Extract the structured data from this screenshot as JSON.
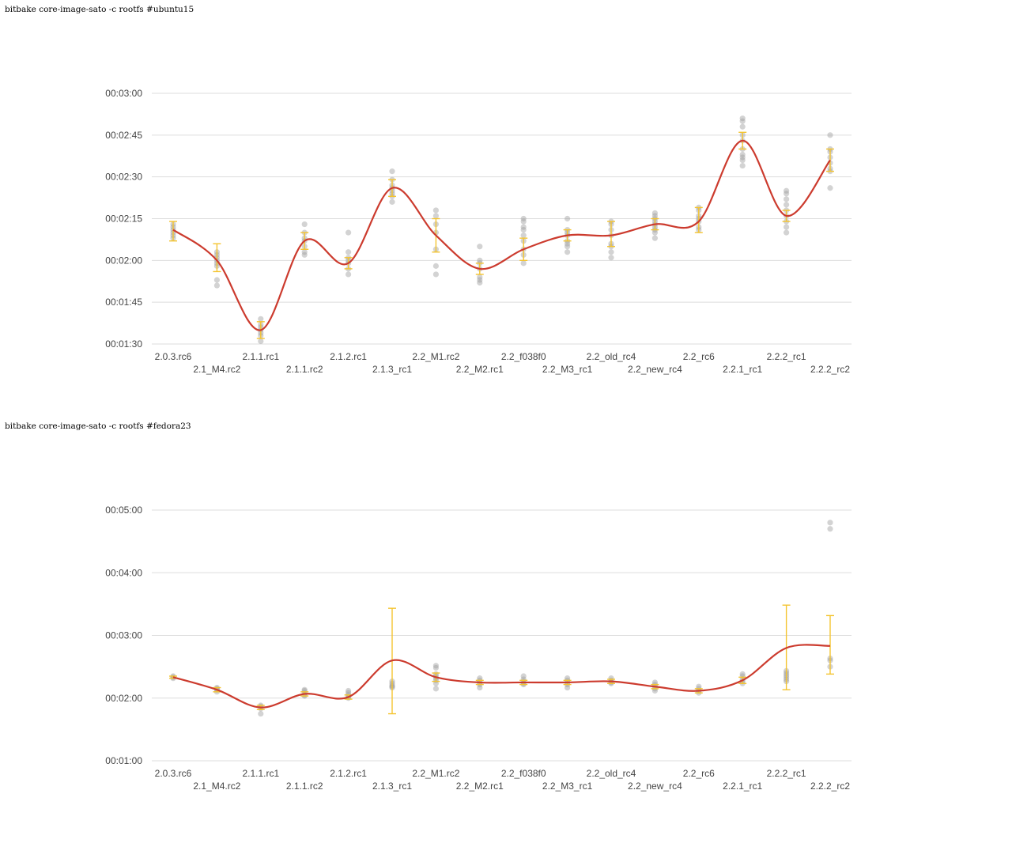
{
  "chart_data": [
    {
      "type": "line",
      "title": "bitbake core-image-sato -c rootfs #ubuntu15",
      "xlabel": "",
      "ylabel": "",
      "categories": [
        "2.0.3.rc6",
        "2.1_M4.rc2",
        "2.1.1.rc1",
        "2.1.1.rc2",
        "2.1.2.rc1",
        "2.1.3_rc1",
        "2.2_M1.rc2",
        "2.2_M2.rc1",
        "2.2_f038f0",
        "2.2_M3_rc1",
        "2.2_old_rc4",
        "2.2_new_rc4",
        "2.2_rc6",
        "2.2.1_rc1",
        "2.2.2_rc1",
        "2.2.2_rc2"
      ],
      "y_unit": "seconds",
      "ylim": [
        90,
        180
      ],
      "yticks": [
        90,
        105,
        120,
        135,
        150,
        165,
        180
      ],
      "ytick_labels": [
        "00:01:30",
        "00:01:45",
        "00:02:00",
        "00:02:15",
        "00:02:30",
        "00:02:45",
        "00:03:00"
      ],
      "grid": true,
      "legend": "none",
      "colors": {
        "line": "#cc3b2e",
        "errorbar": "#f4c430",
        "point": "#9e9e9e",
        "grid": "#dddddd"
      },
      "series": [
        {
          "values": [
            131,
            120,
            95,
            127,
            119,
            146,
            129,
            117,
            124,
            129,
            129,
            133,
            134,
            163,
            136,
            156
          ]
        }
      ],
      "error_bars": [
        [
          127,
          134
        ],
        [
          116,
          126
        ],
        [
          92,
          98
        ],
        [
          124,
          130
        ],
        [
          117,
          121
        ],
        [
          143,
          149
        ],
        [
          123,
          135
        ],
        [
          115,
          119
        ],
        [
          120,
          128
        ],
        [
          127,
          131
        ],
        [
          125,
          134
        ],
        [
          131,
          135
        ],
        [
          130,
          139
        ],
        [
          160,
          166
        ],
        [
          134,
          138
        ],
        [
          152,
          160
        ]
      ],
      "runs": [
        [
          128,
          131,
          133,
          130,
          129,
          132
        ],
        [
          111,
          118,
          120,
          122,
          113,
          119,
          121,
          123
        ],
        [
          93,
          95,
          96,
          99,
          97,
          91,
          94
        ],
        [
          123,
          125,
          127,
          128,
          130,
          133,
          122
        ],
        [
          115,
          117,
          119,
          120,
          121,
          123,
          130
        ],
        [
          141,
          143,
          146,
          147,
          149,
          152,
          144,
          145
        ],
        [
          115,
          118,
          124,
          133,
          136,
          138,
          130
        ],
        [
          112,
          113,
          114,
          117,
          119,
          120,
          125
        ],
        [
          119,
          122,
          124,
          127,
          129,
          131,
          132,
          134,
          135
        ],
        [
          123,
          125,
          126,
          127,
          129,
          130,
          131,
          135
        ],
        [
          121,
          123,
          125,
          126,
          129,
          131,
          133,
          134
        ],
        [
          128,
          130,
          131,
          132,
          133,
          134,
          135,
          136,
          137
        ],
        [
          131,
          132,
          134,
          135,
          136,
          138,
          139
        ],
        [
          154,
          156,
          157,
          158,
          160,
          163,
          165,
          168,
          170,
          171
        ],
        [
          130,
          132,
          134,
          136,
          138,
          140,
          142,
          144,
          145
        ],
        [
          146,
          152,
          153,
          155,
          157,
          159,
          160,
          165
        ]
      ]
    },
    {
      "type": "line",
      "title": "bitbake core-image-sato -c rootfs #fedora23",
      "xlabel": "",
      "ylabel": "",
      "categories": [
        "2.0.3.rc6",
        "2.1_M4.rc2",
        "2.1.1.rc1",
        "2.1.1.rc2",
        "2.1.2.rc1",
        "2.1.3_rc1",
        "2.2_M1.rc2",
        "2.2_M2.rc1",
        "2.2_f038f0",
        "2.2_M3_rc1",
        "2.2_old_rc4",
        "2.2_new_rc4",
        "2.2_rc6",
        "2.2.1_rc1",
        "2.2.2_rc1",
        "2.2.2_rc2"
      ],
      "y_unit": "seconds",
      "ylim": [
        60,
        300
      ],
      "yticks": [
        60,
        120,
        180,
        240,
        300
      ],
      "ytick_labels": [
        "00:01:00",
        "00:02:00",
        "00:03:00",
        "00:04:00",
        "00:05:00"
      ],
      "grid": true,
      "legend": "none",
      "colors": {
        "line": "#cc3b2e",
        "errorbar": "#f4c430",
        "point": "#9e9e9e",
        "grid": "#dddddd"
      },
      "series": [
        {
          "values": [
            140,
            128,
            111,
            124,
            121,
            156,
            140,
            135,
            135,
            135,
            136,
            131,
            127,
            137,
            168,
            170
          ]
        }
      ],
      "error_bars": [
        [
          139,
          141
        ],
        [
          126,
          130
        ],
        [
          109,
          113
        ],
        [
          122,
          126
        ],
        [
          119,
          123
        ],
        [
          105,
          206
        ],
        [
          136,
          144
        ],
        [
          133,
          137
        ],
        [
          133,
          137
        ],
        [
          133,
          137
        ],
        [
          134,
          138
        ],
        [
          129,
          133
        ],
        [
          125,
          129
        ],
        [
          134,
          140
        ],
        [
          128,
          209
        ],
        [
          143,
          199
        ]
      ],
      "runs": [
        [
          139,
          140,
          141
        ],
        [
          126,
          128,
          129,
          130
        ],
        [
          105,
          110,
          112,
          113
        ],
        [
          122,
          123,
          125,
          127,
          128
        ],
        [
          120,
          121,
          123,
          125,
          127
        ],
        [
          130,
          131,
          132,
          134,
          136
        ],
        [
          129,
          134,
          137,
          139,
          141,
          143,
          149,
          151
        ],
        [
          130,
          133,
          135,
          137,
          139
        ],
        [
          133,
          134,
          136,
          138,
          141
        ],
        [
          130,
          133,
          135,
          137,
          139
        ],
        [
          134,
          135,
          137,
          139
        ],
        [
          127,
          129,
          131,
          133,
          135
        ],
        [
          125,
          127,
          129,
          131
        ],
        [
          134,
          136,
          138,
          141,
          143
        ],
        [
          136,
          138,
          140,
          142,
          144,
          146
        ],
        [
          150,
          156,
          158,
          282,
          288
        ]
      ]
    }
  ]
}
